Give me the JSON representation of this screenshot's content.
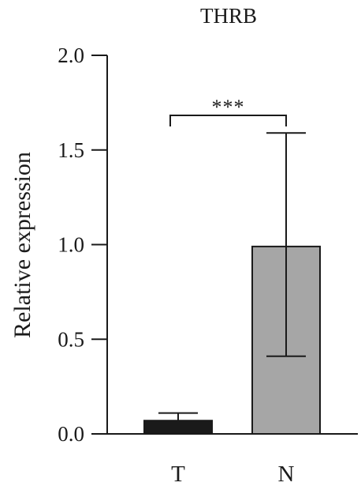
{
  "chart_data": {
    "type": "bar",
    "title": "THRB",
    "xlabel": "",
    "ylabel": "Relative expression",
    "categories": [
      "T",
      "N"
    ],
    "values": [
      0.07,
      0.99
    ],
    "error_upper": [
      0.11,
      1.59
    ],
    "error_lower": [
      0.07,
      0.41
    ],
    "bar_colors": [
      "#1a1a1a",
      "#a6a6a6"
    ],
    "ylim": [
      0,
      2.0
    ],
    "yticks": [
      0.0,
      0.5,
      1.0,
      1.5,
      2.0
    ],
    "ytick_labels": [
      "0.0",
      "0.5",
      "1.0",
      "1.5",
      "2.0"
    ],
    "grid": false,
    "legend": "none",
    "annotations": [
      {
        "text": "***",
        "between": [
          "T",
          "N"
        ]
      }
    ]
  }
}
